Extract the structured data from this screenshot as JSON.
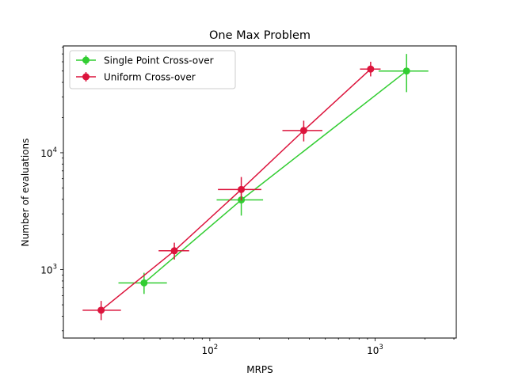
{
  "chart_data": {
    "type": "line",
    "title": "One Max Problem",
    "xlabel": "MRPS",
    "ylabel": "Number of evaluations",
    "xscale": "log",
    "yscale": "log",
    "xlim": [
      13,
      3100
    ],
    "ylim": [
      260,
      82000
    ],
    "x_ticks": [
      {
        "value": 100,
        "base": "10",
        "exp": "2"
      },
      {
        "value": 1000,
        "base": "10",
        "exp": "3"
      }
    ],
    "y_ticks": [
      {
        "value": 1000,
        "base": "10",
        "exp": "3"
      },
      {
        "value": 10000,
        "base": "10",
        "exp": "4"
      }
    ],
    "grid": false,
    "legend_position": "upper-left",
    "series": [
      {
        "name": "Single Point Cross-over",
        "color": "#32cd32",
        "points": [
          {
            "x": 40,
            "y": 770,
            "x_lo": 28,
            "x_hi": 55,
            "y_lo": 620,
            "y_hi": 940
          },
          {
            "x": 155,
            "y": 3950,
            "x_lo": 110,
            "x_hi": 210,
            "y_lo": 2900,
            "y_hi": 5100
          },
          {
            "x": 1550,
            "y": 50000,
            "x_lo": 1050,
            "x_hi": 2100,
            "y_lo": 33000,
            "y_hi": 70000
          }
        ]
      },
      {
        "name": "Uniform Cross-over",
        "color": "#dc143c",
        "points": [
          {
            "x": 22,
            "y": 450,
            "x_lo": 17,
            "x_hi": 29,
            "y_lo": 370,
            "y_hi": 540
          },
          {
            "x": 61,
            "y": 1450,
            "x_lo": 49,
            "x_hi": 75,
            "y_lo": 1220,
            "y_hi": 1700
          },
          {
            "x": 155,
            "y": 4850,
            "x_lo": 112,
            "x_hi": 205,
            "y_lo": 3900,
            "y_hi": 6200
          },
          {
            "x": 370,
            "y": 15500,
            "x_lo": 275,
            "x_hi": 480,
            "y_lo": 12500,
            "y_hi": 18800
          },
          {
            "x": 940,
            "y": 52000,
            "x_lo": 810,
            "x_hi": 1080,
            "y_lo": 45000,
            "y_hi": 60000
          }
        ]
      }
    ]
  }
}
